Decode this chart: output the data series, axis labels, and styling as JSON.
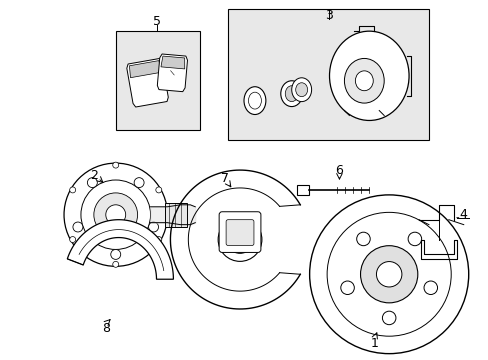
{
  "bg_color": "#ffffff",
  "line_color": "#000000",
  "fig_width": 4.89,
  "fig_height": 3.6,
  "dpi": 100,
  "shade5": "#e8e8e8",
  "shade3": "#e8e8e8"
}
